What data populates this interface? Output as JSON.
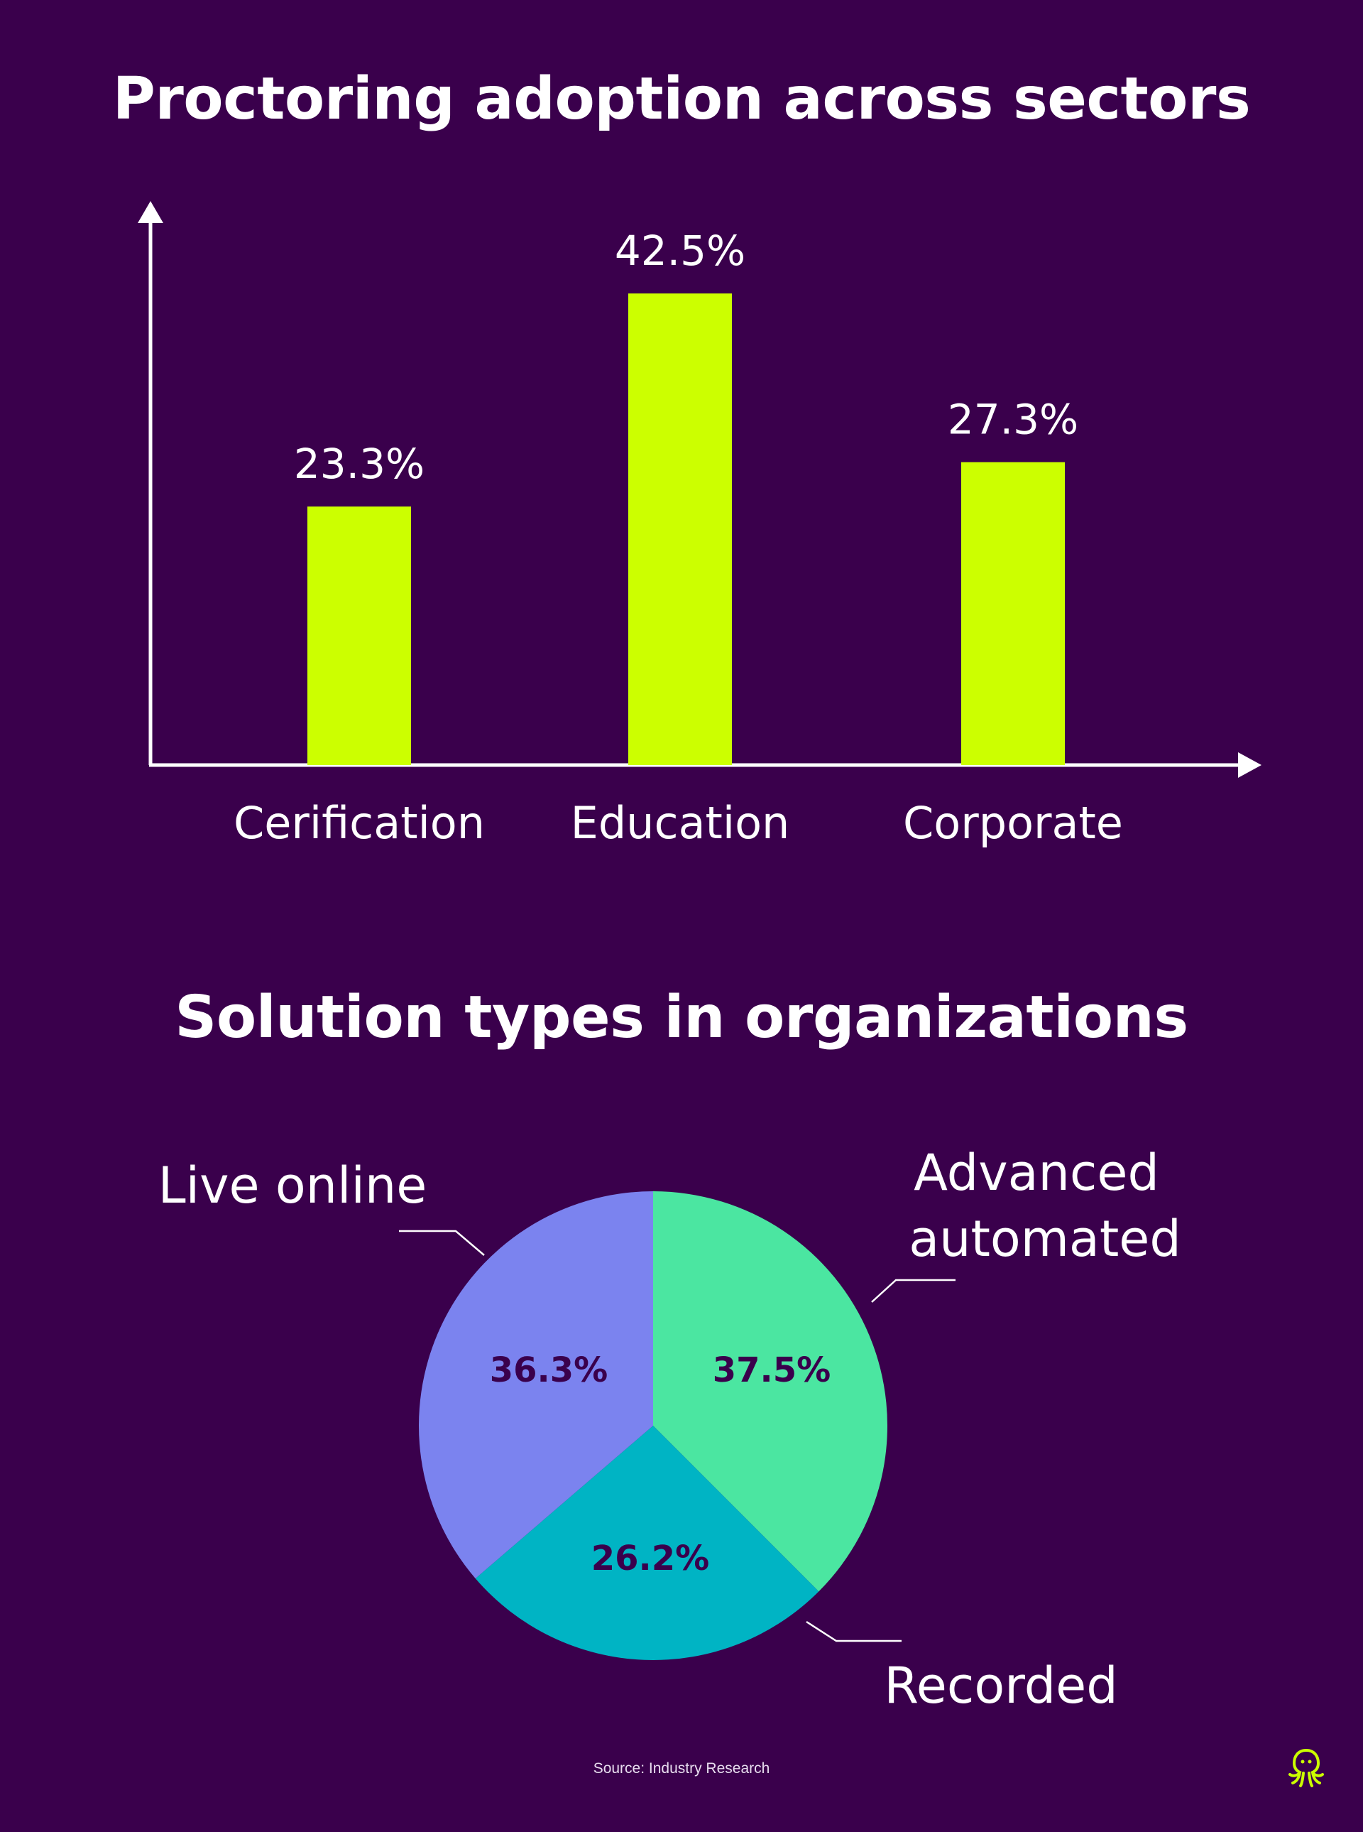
{
  "bar_chart_title": "Proctoring adoption across sectors",
  "pie_chart_title": "Solution types in organizations",
  "source": "Source: Industry Research",
  "logo_icon": "octopus-icon",
  "colors": {
    "background": "#3a004c",
    "bar": "#ccff00",
    "axis": "#ffffff",
    "text": "#ffffff",
    "slice_label": "#3a004c",
    "advanced_automated": "#4be6a1",
    "recorded": "#00b4c4",
    "live_online": "#7b83ef"
  },
  "chart_data": [
    {
      "type": "bar",
      "title": "Proctoring adoption across sectors",
      "categories": [
        "Cerification",
        "Education",
        "Corporate"
      ],
      "values": [
        23.3,
        42.5,
        27.3
      ],
      "value_labels": [
        "23.3%",
        "42.5%",
        "27.3%"
      ],
      "unit": "%",
      "ylim": [
        0,
        50
      ],
      "grid": false,
      "xlabel": "",
      "ylabel": ""
    },
    {
      "type": "pie",
      "title": "Solution types in organizations",
      "slices": [
        {
          "label": "Advanced automated",
          "value": 37.5,
          "value_label": "37.5%",
          "color": "#4be6a1"
        },
        {
          "label": "Recorded",
          "value": 26.2,
          "value_label": "26.2%",
          "color": "#00b4c4"
        },
        {
          "label": "Live online",
          "value": 36.3,
          "value_label": "36.3%",
          "color": "#7b83ef"
        }
      ],
      "start": "top, clockwise"
    }
  ]
}
